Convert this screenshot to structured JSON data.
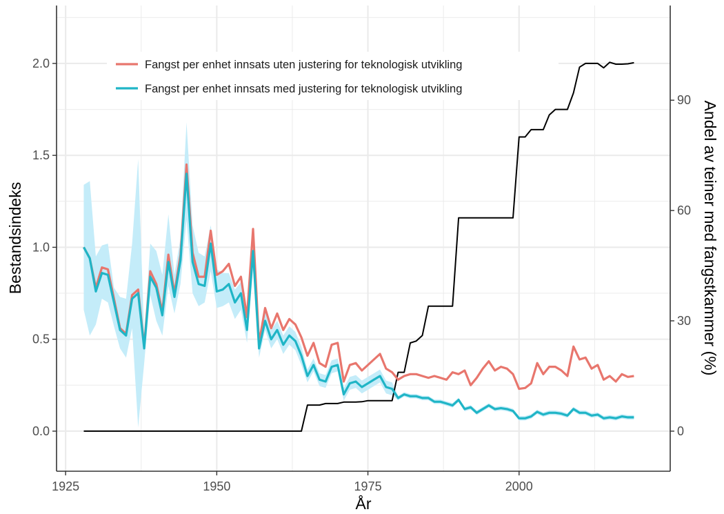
{
  "chart_data": {
    "type": "line",
    "title": "",
    "xlabel": "År",
    "ylabel": "Bestandsindeks",
    "ylabel_right": "Andel av teiner med fangstkammer (%)",
    "xlim": [
      1923.5,
      2025
    ],
    "ylim": [
      -0.218,
      2.315
    ],
    "ylim_right": [
      -10.9,
      115.75
    ],
    "x_ticks": [
      1925,
      1950,
      1975,
      2000
    ],
    "x_tick_labels": [
      "1925",
      "1950",
      "1975",
      "2000"
    ],
    "y_ticks": [
      0,
      0.5,
      1,
      1.5,
      2
    ],
    "y_tick_labels": [
      "0.0",
      "0.5",
      "1.0",
      "1.5",
      "2.0"
    ],
    "y_right_ticks": [
      0,
      30,
      60,
      90
    ],
    "y_right_tick_labels": [
      "0",
      "30",
      "60",
      "90"
    ],
    "grid": true,
    "legend_placement": "top-left",
    "colors": {
      "unadjusted": "#e8766d",
      "adjusted": "#1fb5c6",
      "ribbon": "#c4ecf9",
      "share": "#000000",
      "grid": "#ebebeb"
    },
    "x": [
      1928,
      1929,
      1930,
      1931,
      1932,
      1933,
      1934,
      1935,
      1936,
      1937,
      1938,
      1939,
      1940,
      1941,
      1942,
      1943,
      1944,
      1945,
      1946,
      1947,
      1948,
      1949,
      1950,
      1951,
      1952,
      1953,
      1954,
      1955,
      1956,
      1957,
      1958,
      1959,
      1960,
      1961,
      1962,
      1963,
      1964,
      1965,
      1966,
      1967,
      1968,
      1969,
      1970,
      1971,
      1972,
      1973,
      1974,
      1975,
      1976,
      1977,
      1978,
      1979,
      1980,
      1981,
      1982,
      1983,
      1984,
      1985,
      1986,
      1987,
      1988,
      1989,
      1990,
      1991,
      1992,
      1993,
      1994,
      1995,
      1996,
      1997,
      1998,
      1999,
      2000,
      2001,
      2002,
      2003,
      2004,
      2005,
      2006,
      2007,
      2008,
      2009,
      2010,
      2011,
      2012,
      2013,
      2014,
      2015,
      2016,
      2017,
      2018,
      2019
    ],
    "series": [
      {
        "name": "Fangst per enhet innsats uten justering for teknologisk utvikling",
        "axis": "left",
        "values": [
          1.0,
          0.94,
          0.78,
          0.89,
          0.88,
          0.72,
          0.56,
          0.53,
          0.74,
          0.77,
          0.46,
          0.87,
          0.8,
          0.65,
          0.96,
          0.75,
          0.96,
          1.45,
          0.97,
          0.84,
          0.84,
          1.09,
          0.85,
          0.87,
          0.91,
          0.79,
          0.84,
          0.62,
          1.1,
          0.48,
          0.67,
          0.56,
          0.64,
          0.55,
          0.61,
          0.58,
          0.51,
          0.41,
          0.48,
          0.37,
          0.35,
          0.47,
          0.48,
          0.27,
          0.36,
          0.37,
          0.33,
          0.36,
          0.39,
          0.42,
          0.34,
          0.32,
          0.28,
          0.3,
          0.31,
          0.31,
          0.3,
          0.29,
          0.3,
          0.29,
          0.28,
          0.32,
          0.31,
          0.33,
          0.25,
          0.29,
          0.34,
          0.38,
          0.33,
          0.35,
          0.34,
          0.31,
          0.23,
          0.235,
          0.26,
          0.37,
          0.31,
          0.35,
          0.35,
          0.33,
          0.3,
          0.46,
          0.39,
          0.4,
          0.34,
          0.36,
          0.28,
          0.3,
          0.27,
          0.31,
          0.295,
          0.3
        ]
      },
      {
        "name": "Fangst per enhet innsats med justering for teknologisk utvikling",
        "axis": "left",
        "values": [
          1.0,
          0.94,
          0.76,
          0.86,
          0.85,
          0.7,
          0.55,
          0.52,
          0.72,
          0.75,
          0.45,
          0.84,
          0.78,
          0.63,
          0.92,
          0.73,
          0.93,
          1.4,
          0.92,
          0.8,
          0.79,
          1.02,
          0.76,
          0.77,
          0.8,
          0.7,
          0.75,
          0.55,
          0.98,
          0.45,
          0.6,
          0.5,
          0.55,
          0.47,
          0.52,
          0.49,
          0.41,
          0.3,
          0.36,
          0.28,
          0.27,
          0.35,
          0.36,
          0.2,
          0.26,
          0.27,
          0.24,
          0.26,
          0.28,
          0.3,
          0.24,
          0.23,
          0.18,
          0.2,
          0.19,
          0.19,
          0.18,
          0.18,
          0.16,
          0.16,
          0.15,
          0.14,
          0.17,
          0.12,
          0.13,
          0.1,
          0.12,
          0.14,
          0.12,
          0.125,
          0.12,
          0.11,
          0.07,
          0.07,
          0.08,
          0.105,
          0.09,
          0.1,
          0.1,
          0.095,
          0.085,
          0.12,
          0.1,
          0.1,
          0.085,
          0.09,
          0.07,
          0.075,
          0.07,
          0.08,
          0.075,
          0.075
        ],
        "ribbon_lower": [
          0.66,
          0.52,
          0.58,
          0.72,
          0.7,
          0.57,
          0.45,
          0.4,
          0.56,
          0.02,
          0.37,
          0.74,
          0.6,
          0.52,
          0.79,
          0.64,
          0.8,
          1.15,
          0.75,
          0.68,
          0.7,
          0.87,
          0.67,
          0.68,
          0.7,
          0.61,
          0.66,
          0.48,
          0.88,
          0.4,
          0.55,
          0.45,
          0.5,
          0.42,
          0.47,
          0.44,
          0.36,
          0.265,
          0.325,
          0.245,
          0.235,
          0.315,
          0.325,
          0.165,
          0.225,
          0.235,
          0.205,
          0.225,
          0.245,
          0.265,
          0.205,
          0.195,
          0.168,
          0.188,
          0.178,
          0.178,
          0.168,
          0.168,
          0.148,
          0.148,
          0.138,
          0.128,
          0.158,
          0.108,
          0.118,
          0.088,
          0.108,
          0.128,
          0.108,
          0.113,
          0.108,
          0.098,
          0.058,
          0.058,
          0.068,
          0.093,
          0.078,
          0.088,
          0.088,
          0.083,
          0.073,
          0.108,
          0.088,
          0.088,
          0.073,
          0.078,
          0.058,
          0.063,
          0.058,
          0.068,
          0.063,
          0.063
        ],
        "ribbon_upper": [
          1.34,
          1.36,
          0.95,
          1.01,
          1.02,
          0.78,
          0.73,
          0.72,
          1.02,
          1.48,
          0.52,
          1.02,
          0.98,
          0.85,
          1.18,
          0.85,
          1.05,
          1.68,
          1.12,
          0.97,
          0.95,
          1.12,
          0.88,
          0.86,
          0.86,
          0.77,
          0.81,
          0.61,
          1.1,
          0.49,
          0.65,
          0.55,
          0.6,
          0.52,
          0.57,
          0.54,
          0.46,
          0.335,
          0.395,
          0.315,
          0.305,
          0.385,
          0.395,
          0.235,
          0.295,
          0.305,
          0.275,
          0.295,
          0.315,
          0.335,
          0.275,
          0.265,
          0.192,
          0.212,
          0.202,
          0.202,
          0.192,
          0.192,
          0.172,
          0.172,
          0.162,
          0.152,
          0.182,
          0.132,
          0.142,
          0.112,
          0.132,
          0.152,
          0.132,
          0.137,
          0.132,
          0.122,
          0.082,
          0.082,
          0.092,
          0.117,
          0.102,
          0.112,
          0.112,
          0.107,
          0.097,
          0.132,
          0.112,
          0.112,
          0.097,
          0.102,
          0.082,
          0.087,
          0.082,
          0.092,
          0.087,
          0.087
        ]
      },
      {
        "axis": "right",
        "values": [
          0,
          0,
          0,
          0,
          0,
          0,
          0,
          0,
          0,
          0,
          0,
          0,
          0,
          0,
          0,
          0,
          0,
          0,
          0,
          0,
          0,
          0,
          0,
          0,
          0,
          0,
          0,
          0,
          0,
          0,
          0,
          0,
          0,
          0,
          0,
          0,
          0,
          7.1,
          7.1,
          7.1,
          7.5,
          7.5,
          7.5,
          7.9,
          7.9,
          7.9,
          8.0,
          8.3,
          8.3,
          8.3,
          8.3,
          8.3,
          16,
          16,
          24,
          24.5,
          26,
          34,
          34,
          34,
          34,
          34,
          58,
          58,
          58,
          58,
          58,
          58,
          58,
          58,
          58,
          58,
          80,
          80,
          82,
          82,
          82,
          86,
          87.5,
          87.5,
          87.5,
          92,
          99,
          100,
          100,
          100,
          98.8,
          100.3,
          99.8,
          99.8,
          99.9,
          100.2
        ]
      }
    ]
  }
}
